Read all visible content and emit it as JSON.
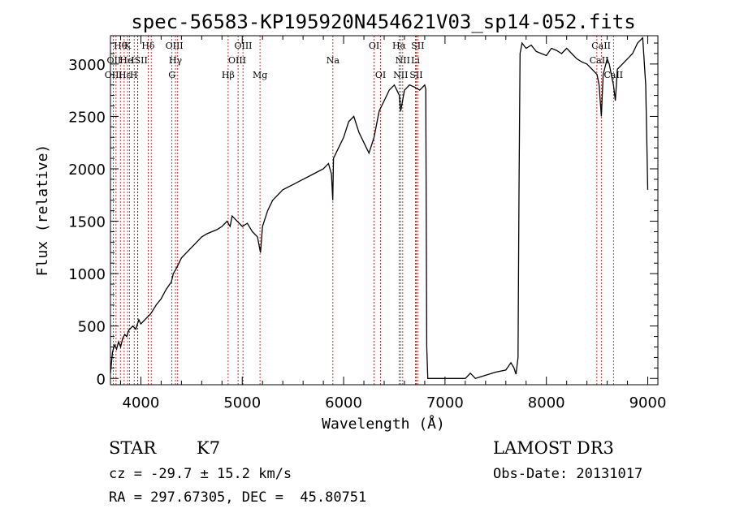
{
  "chart_data": {
    "type": "line",
    "title": "spec-56583-KP195920N454621V03_sp14-052.fits",
    "xlabel": "Wavelength (Å)",
    "ylabel": "Flux (relative)",
    "xlim": [
      3700,
      9100
    ],
    "ylim": [
      -60,
      3270
    ],
    "xticks": [
      4000,
      5000,
      6000,
      7000,
      8000,
      9000
    ],
    "yticks": [
      0,
      500,
      1000,
      1500,
      2000,
      2500,
      3000
    ],
    "series": [
      {
        "name": "flux",
        "x": [
          3700,
          3720,
          3740,
          3760,
          3780,
          3800,
          3820,
          3840,
          3860,
          3880,
          3900,
          3920,
          3950,
          3980,
          4000,
          4050,
          4100,
          4150,
          4200,
          4250,
          4300,
          4320,
          4350,
          4400,
          4450,
          4500,
          4550,
          4600,
          4650,
          4700,
          4750,
          4800,
          4850,
          4880,
          4900,
          4950,
          5000,
          5050,
          5100,
          5150,
          5180,
          5200,
          5250,
          5300,
          5400,
          5500,
          5600,
          5700,
          5800,
          5850,
          5880,
          5893,
          5900,
          5950,
          6000,
          6050,
          6100,
          6150,
          6200,
          6250,
          6300,
          6350,
          6400,
          6450,
          6500,
          6550,
          6563,
          6600,
          6650,
          6700,
          6750,
          6780,
          6800,
          6810,
          6820,
          6830,
          6900,
          7000,
          7100,
          7200,
          7250,
          7300,
          7400,
          7500,
          7600,
          7650,
          7680,
          7700,
          7720,
          7730,
          7740,
          7760,
          7800,
          7850,
          7900,
          7950,
          8000,
          8050,
          8100,
          8150,
          8200,
          8250,
          8300,
          8350,
          8400,
          8450,
          8500,
          8520,
          8542,
          8560,
          8600,
          8620,
          8640,
          8662,
          8680,
          8700,
          8750,
          8800,
          8850,
          8900,
          8950,
          8980,
          9000
        ],
        "y": [
          50,
          250,
          320,
          280,
          350,
          300,
          380,
          420,
          400,
          460,
          480,
          500,
          470,
          560,
          520,
          570,
          620,
          700,
          760,
          850,
          920,
          1000,
          1050,
          1150,
          1200,
          1250,
          1300,
          1350,
          1380,
          1400,
          1420,
          1450,
          1500,
          1450,
          1550,
          1500,
          1450,
          1480,
          1400,
          1350,
          1200,
          1450,
          1600,
          1700,
          1800,
          1850,
          1900,
          1950,
          2000,
          2050,
          1950,
          1700,
          2100,
          2200,
          2300,
          2450,
          2500,
          2350,
          2250,
          2150,
          2300,
          2550,
          2650,
          2750,
          2800,
          2700,
          2550,
          2750,
          2800,
          2780,
          2750,
          2780,
          2800,
          2760,
          300,
          0,
          0,
          0,
          0,
          0,
          50,
          0,
          30,
          60,
          80,
          150,
          100,
          40,
          200,
          1800,
          3100,
          3200,
          3150,
          3180,
          3120,
          3100,
          3080,
          3150,
          3130,
          3100,
          3150,
          3100,
          3050,
          3020,
          3000,
          2950,
          2900,
          2800,
          2500,
          2900,
          3050,
          3000,
          2900,
          2800,
          2650,
          2950,
          3000,
          3050,
          3100,
          3200,
          3250,
          2800,
          1800
        ]
      }
    ],
    "lines": [
      {
        "name": "Hθ",
        "x": 3798
      },
      {
        "name": "OII",
        "x": 3727
      },
      {
        "name": "OIII",
        "x": 3755
      },
      {
        "name": "Hε",
        "x": 3835
      },
      {
        "name": "K",
        "x": 3869
      },
      {
        "name": "HeI",
        "x": 3889
      },
      {
        "name": "Hη",
        "x": 3934
      },
      {
        "name": "SII",
        "x": 3968
      },
      {
        "name": "H",
        "x": 3970
      },
      {
        "name": "Hδ",
        "x": 4072
      },
      {
        "name": "SII",
        "x": 4102
      },
      {
        "name": "OIII",
        "x": 4306
      },
      {
        "name": "Hγ",
        "x": 4341
      },
      {
        "name": "G",
        "x": 4363
      },
      {
        "name": "Hβ",
        "x": 4861
      },
      {
        "name": "OIII",
        "x": 4959
      },
      {
        "name": "OIII",
        "x": 5007
      },
      {
        "name": "Mg",
        "x": 5175
      },
      {
        "name": "Na",
        "x": 5894
      },
      {
        "name": "OI",
        "x": 6300
      },
      {
        "name": "OI",
        "x": 6364
      },
      {
        "name": "Hα",
        "x": 6548
      },
      {
        "name": "NII",
        "x": 6563
      },
      {
        "name": "NII",
        "x": 6583
      },
      {
        "name": "Li",
        "x": 6708
      },
      {
        "name": "SII",
        "x": 6716
      },
      {
        "name": "SII",
        "x": 6731
      },
      {
        "name": "CaII",
        "x": 8498
      },
      {
        "name": "CaII",
        "x": 8542
      },
      {
        "name": "CaII",
        "x": 8662
      }
    ],
    "label_rows": [
      {
        "row": 0,
        "labels": [
          {
            "text": "Hθ",
            "x": 3798
          },
          {
            "text": "K",
            "x": 3869
          },
          {
            "text": "Hδ",
            "x": 4072
          },
          {
            "text": "OIII",
            "x": 4330
          },
          {
            "text": "OIII",
            "x": 5010
          },
          {
            "text": "OI",
            "x": 6300
          },
          {
            "text": "Hα",
            "x": 6548
          },
          {
            "text": "SII",
            "x": 6731
          },
          {
            "text": "CaII",
            "x": 8540
          }
        ]
      },
      {
        "row": 1,
        "labels": [
          {
            "text": "OII",
            "x": 3735
          },
          {
            "text": "He",
            "x": 3855
          },
          {
            "text": "ISII",
            "x": 3985
          },
          {
            "text": "Hγ",
            "x": 4341
          },
          {
            "text": "OIII",
            "x": 4950
          },
          {
            "text": "Na",
            "x": 5894
          },
          {
            "text": "NII",
            "x": 6583
          },
          {
            "text": "Li",
            "x": 6708
          },
          {
            "text": "CaII",
            "x": 8520
          }
        ]
      },
      {
        "row": 2,
        "labels": [
          {
            "text": "OIII",
            "x": 3730
          },
          {
            "text": "Hε",
            "x": 3840
          },
          {
            "text": "H",
            "x": 3930
          },
          {
            "text": "G",
            "x": 4306
          },
          {
            "text": "Hβ",
            "x": 4861
          },
          {
            "text": "Mg",
            "x": 5175
          },
          {
            "text": "OI",
            "x": 6364
          },
          {
            "text": "NII",
            "x": 6563
          },
          {
            "text": "SII",
            "x": 6716
          },
          {
            "text": "CaII",
            "x": 8662
          }
        ]
      }
    ]
  },
  "info": {
    "object_class": "STAR",
    "subclass": "K7",
    "survey": "LAMOST DR3",
    "cz": "cz = -29.7 ± 15.2 km/s",
    "obs_date": "Obs-Date: 20131017",
    "coords": "RA = 297.67305, DEC =  45.80751"
  },
  "colors": {
    "axis": "#000000",
    "spectrum": "#000000",
    "line_marker": "#c00000"
  }
}
